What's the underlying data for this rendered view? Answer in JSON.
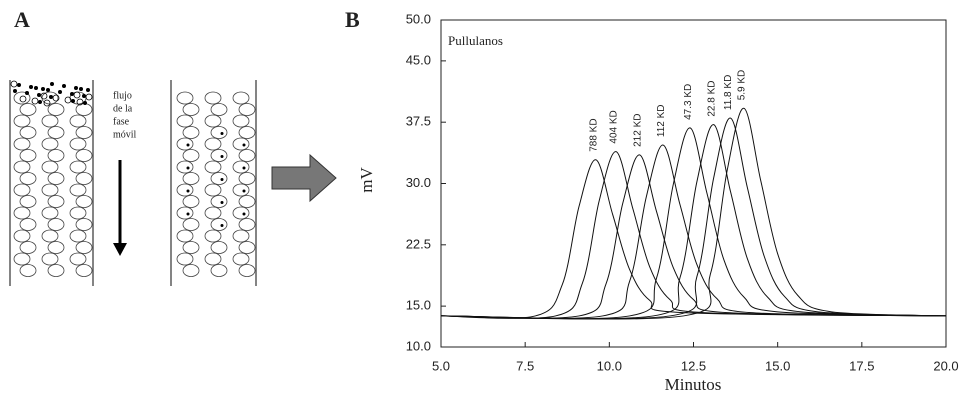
{
  "panel_a": {
    "label": "A",
    "flow_text": [
      "flujo",
      "de la",
      "fase",
      "móvil"
    ]
  },
  "chart_data": {
    "type": "line",
    "panel_label": "B",
    "annotation": "Pullulanos",
    "x_label": "Minutos",
    "y_label": "mV",
    "xlim": [
      5,
      20
    ],
    "xticks": [
      {
        "value": 5,
        "label": "5.0"
      },
      {
        "value": 7.5,
        "label": "7.5"
      },
      {
        "value": 10,
        "label": "10.0"
      },
      {
        "value": 12.5,
        "label": "12.5"
      },
      {
        "value": 15,
        "label": "15.0"
      },
      {
        "value": 17.5,
        "label": "17.5"
      },
      {
        "value": 20,
        "label": "20.0"
      }
    ],
    "ylim": [
      10,
      50
    ],
    "yticks": [
      {
        "value": 10,
        "label": "10.0"
      },
      {
        "value": 15,
        "label": "15.0"
      },
      {
        "value": 22.5,
        "label": "22.5"
      },
      {
        "value": 30,
        "label": "30.0"
      },
      {
        "value": 37.5,
        "label": "37.5"
      },
      {
        "value": 45,
        "label": "45.0"
      },
      {
        "value": 50,
        "label": "50.0"
      }
    ],
    "series": [
      {
        "name": "788 KD",
        "color": "#111111",
        "x": [
          5,
          7.8,
          8.6,
          9.1,
          9.6,
          10.1,
          10.6,
          11.2,
          12.2,
          20
        ],
        "values": [
          13.8,
          13.8,
          17.6,
          27.2,
          32.9,
          26.2,
          19.5,
          15.7,
          14.2,
          13.8
        ]
      },
      {
        "name": "404 KD",
        "color": "#111111",
        "x": [
          5,
          8.4,
          9.2,
          9.7,
          10.2,
          10.7,
          11.2,
          11.8,
          12.8,
          20
        ],
        "values": [
          13.8,
          13.8,
          17.8,
          27.9,
          33.9,
          26.9,
          19.8,
          15.8,
          14.2,
          13.8
        ]
      },
      {
        "name": "212 KD",
        "color": "#111111",
        "x": [
          5,
          9.1,
          9.9,
          10.4,
          10.9,
          11.4,
          11.9,
          12.5,
          13.5,
          20
        ],
        "values": [
          13.8,
          13.8,
          17.7,
          27.6,
          33.5,
          26.6,
          19.7,
          15.8,
          14.2,
          13.8
        ]
      },
      {
        "name": "112 KD",
        "color": "#111111",
        "x": [
          5,
          9.8,
          10.6,
          11.1,
          11.6,
          12.1,
          12.6,
          13.2,
          14.2,
          20
        ],
        "values": [
          13.8,
          13.8,
          18.0,
          28.4,
          34.7,
          27.4,
          20.1,
          15.9,
          14.2,
          13.8
        ]
      },
      {
        "name": "47.3 KD",
        "color": "#111111",
        "x": [
          5,
          10.6,
          11.4,
          11.9,
          12.4,
          12.9,
          13.4,
          14.0,
          15.0,
          20
        ],
        "values": [
          13.8,
          13.8,
          18.4,
          29.9,
          36.8,
          28.8,
          20.7,
          16.1,
          14.3,
          13.8
        ]
      },
      {
        "name": "22.8 KD",
        "color": "#111111",
        "x": [
          5,
          11.3,
          12.1,
          12.6,
          13.1,
          13.6,
          14.1,
          14.7,
          15.7,
          20
        ],
        "values": [
          13.8,
          13.8,
          18.5,
          30.2,
          37.2,
          29.0,
          20.8,
          16.1,
          14.3,
          13.8
        ]
      },
      {
        "name": "11.8 KD",
        "color": "#111111",
        "x": [
          5,
          11.8,
          12.6,
          13.1,
          13.6,
          14.1,
          14.6,
          15.2,
          16.2,
          20
        ],
        "values": [
          13.8,
          13.8,
          18.6,
          30.7,
          38.0,
          29.5,
          21.1,
          16.2,
          14.3,
          13.8
        ]
      },
      {
        "name": "5.9 KD",
        "color": "#111111",
        "x": [
          5,
          12.2,
          13.0,
          13.5,
          14.0,
          14.5,
          15.0,
          15.6,
          16.6,
          20
        ],
        "values": [
          13.8,
          13.8,
          18.9,
          31.6,
          39.2,
          30.3,
          21.4,
          16.3,
          14.3,
          13.8
        ]
      }
    ]
  }
}
